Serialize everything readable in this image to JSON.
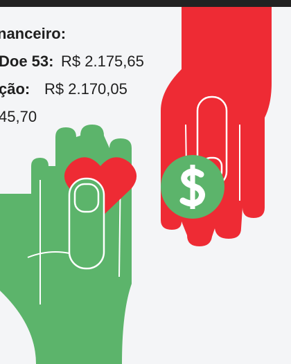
{
  "lines": [
    {
      "label": "nanceiro:"
    },
    {
      "label": "Doe 53:",
      "value": "R$ 2.175,65"
    },
    {
      "label": "ção:",
      "value": "R$ 2.170,05"
    },
    {
      "value": "45,70"
    }
  ]
}
